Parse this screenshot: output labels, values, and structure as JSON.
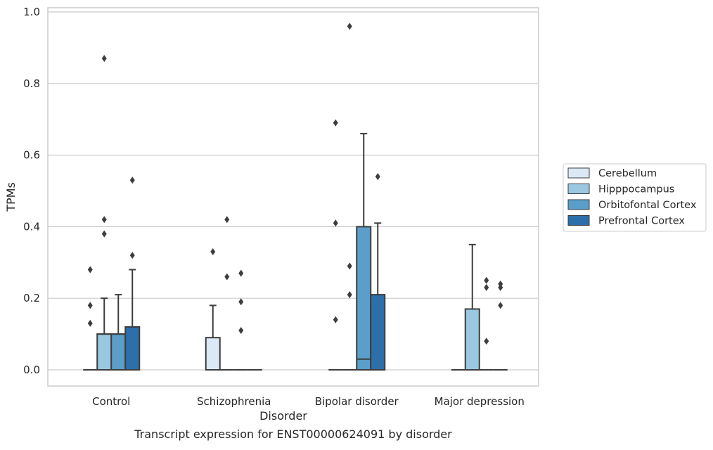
{
  "chart_data": {
    "type": "box",
    "caption": "Transcript expression for ENST00000624091 by disorder",
    "xlabel": "Disorder",
    "ylabel": "TPMs",
    "ylim": [
      -0.045,
      1.01
    ],
    "yticks": [
      0.0,
      0.2,
      0.4,
      0.6,
      0.8,
      1.0
    ],
    "ytick_labels": [
      "0.0",
      "0.2",
      "0.4",
      "0.6",
      "0.8",
      "1.0"
    ],
    "grid": "horizontal",
    "legend_position": "right",
    "categories": [
      "Control",
      "Schizophrenia",
      "Bipolar disorder",
      "Major depression"
    ],
    "series": [
      {
        "name": "Cerebellum",
        "color": "#dbe9f6",
        "boxes": [
          {
            "q1": 0,
            "median": 0,
            "q3": 0,
            "whisker_low": 0,
            "whisker_high": 0,
            "outliers": [
              0.28,
              0.18,
              0.13
            ]
          },
          {
            "q1": 0,
            "median": 0,
            "q3": 0.09,
            "whisker_low": 0,
            "whisker_high": 0.18,
            "outliers": [
              0.33
            ]
          },
          {
            "q1": 0,
            "median": 0,
            "q3": 0,
            "whisker_low": 0,
            "whisker_high": 0,
            "outliers": [
              0.69,
              0.41,
              0.14
            ]
          },
          {
            "q1": 0,
            "median": 0,
            "q3": 0,
            "whisker_low": 0,
            "whisker_high": 0,
            "outliers": []
          }
        ]
      },
      {
        "name": "Hipppocampus",
        "color": "#9ac8e0",
        "boxes": [
          {
            "q1": 0,
            "median": 0.1,
            "q3": 0.1,
            "whisker_low": 0,
            "whisker_high": 0.2,
            "outliers": [
              0.87,
              0.42,
              0.38
            ]
          },
          {
            "q1": 0,
            "median": 0,
            "q3": 0,
            "whisker_low": 0,
            "whisker_high": 0,
            "outliers": [
              0.42,
              0.26
            ]
          },
          {
            "q1": 0,
            "median": 0,
            "q3": 0,
            "whisker_low": 0,
            "whisker_high": 0,
            "outliers": [
              0.96,
              0.29,
              0.21
            ]
          },
          {
            "q1": 0,
            "median": 0,
            "q3": 0.17,
            "whisker_low": 0,
            "whisker_high": 0.35,
            "outliers": []
          }
        ]
      },
      {
        "name": "Orbitofontal Cortex",
        "color": "#5a9ec9",
        "boxes": [
          {
            "q1": 0,
            "median": 0.1,
            "q3": 0.1,
            "whisker_low": 0,
            "whisker_high": 0.21,
            "outliers": []
          },
          {
            "q1": 0,
            "median": 0,
            "q3": 0,
            "whisker_low": 0,
            "whisker_high": 0,
            "outliers": [
              0.27,
              0.19,
              0.11
            ]
          },
          {
            "q1": 0,
            "median": 0.03,
            "q3": 0.4,
            "whisker_low": 0,
            "whisker_high": 0.66,
            "outliers": []
          },
          {
            "q1": 0,
            "median": 0,
            "q3": 0,
            "whisker_low": 0,
            "whisker_high": 0,
            "outliers": [
              0.25,
              0.23,
              0.08
            ]
          }
        ]
      },
      {
        "name": "Prefrontal Cortex",
        "color": "#2c6fab",
        "boxes": [
          {
            "q1": 0,
            "median": 0,
            "q3": 0.12,
            "whisker_low": 0,
            "whisker_high": 0.28,
            "outliers": [
              0.53,
              0.32
            ]
          },
          {
            "q1": 0,
            "median": 0,
            "q3": 0,
            "whisker_low": 0,
            "whisker_high": 0,
            "outliers": []
          },
          {
            "q1": 0,
            "median": 0,
            "q3": 0.21,
            "whisker_low": 0,
            "whisker_high": 0.41,
            "outliers": [
              0.54
            ]
          },
          {
            "q1": 0,
            "median": 0,
            "q3": 0,
            "whisker_low": 0,
            "whisker_high": 0,
            "outliers": [
              0.24,
              0.23,
              0.18
            ]
          }
        ]
      }
    ]
  }
}
